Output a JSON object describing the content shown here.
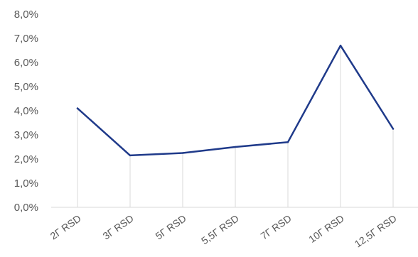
{
  "chart_data": {
    "type": "line",
    "title": "",
    "xlabel": "",
    "ylabel": "",
    "categories": [
      "2Г RSD",
      "3Г RSD",
      "5Г RSD",
      "5,5Г RSD",
      "7Г RSD",
      "10Г RSD",
      "12,5Г RSD"
    ],
    "series": [
      {
        "values": [
          4.1,
          2.15,
          2.25,
          2.5,
          2.7,
          6.7,
          3.25
        ],
        "color": "#1F3A8A"
      }
    ],
    "ylim": [
      0,
      8
    ],
    "yticks": [
      0,
      1,
      2,
      3,
      4,
      5,
      6,
      7,
      8
    ],
    "ytick_labels": [
      "0,0%",
      "1,0%",
      "2,0%",
      "3,0%",
      "4,0%",
      "5,0%",
      "6,0%",
      "7,0%",
      "8,0%"
    ],
    "drop_lines": true,
    "grid": false,
    "legend": "none"
  }
}
